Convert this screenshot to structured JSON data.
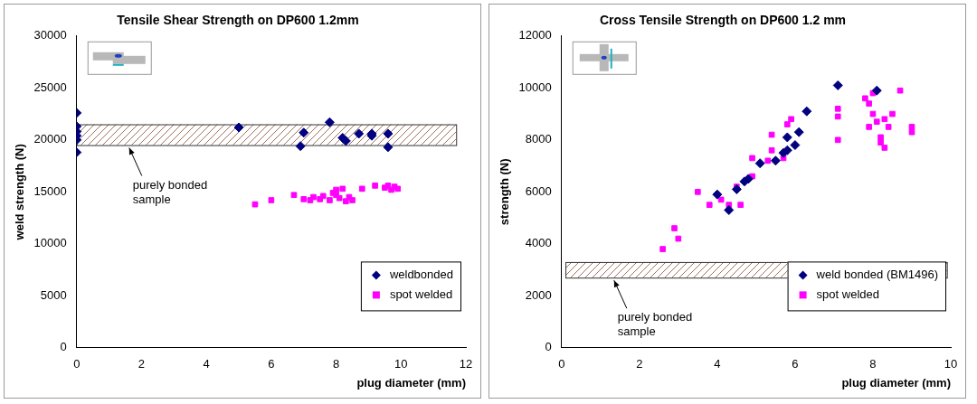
{
  "chart_data": [
    {
      "type": "scatter",
      "title": "Tensile Shear Strength on DP600 1.2mm",
      "x_label": "plug diameter (mm)",
      "y_label": "weld strength (N)",
      "xlim": [
        0,
        12
      ],
      "xticks": [
        0,
        2,
        4,
        6,
        8,
        10,
        12
      ],
      "ylim": [
        0,
        30000
      ],
      "yticks": [
        0,
        5000,
        10000,
        15000,
        20000,
        25000,
        30000
      ],
      "grid": false,
      "legend": "lower right",
      "series": [
        {
          "name": "weldbonded",
          "color": "#000080",
          "marker": "diamond",
          "x": [
            0,
            0,
            0,
            0,
            0,
            0,
            5.0,
            6.9,
            7.0,
            7.8,
            8.2,
            8.3,
            8.7,
            9.1,
            9.1,
            9.6,
            9.6
          ],
          "values": [
            22600,
            21300,
            20800,
            20400,
            20000,
            18800,
            21200,
            19400,
            20700,
            21700,
            20200,
            19900,
            20600,
            20400,
            20600,
            19300,
            20600
          ]
        },
        {
          "name": "spot welded",
          "color": "#ff00ff",
          "marker": "square",
          "x": [
            5.5,
            6.0,
            6.7,
            7.0,
            7.2,
            7.3,
            7.5,
            7.6,
            7.8,
            7.9,
            8.0,
            8.0,
            8.1,
            8.2,
            8.3,
            8.4,
            8.5,
            8.8,
            9.2,
            9.5,
            9.6,
            9.7,
            9.8,
            9.9
          ],
          "values": [
            13800,
            14200,
            14700,
            14300,
            14200,
            14500,
            14300,
            14600,
            14200,
            14900,
            15200,
            14700,
            14400,
            15300,
            14100,
            14500,
            14200,
            15300,
            15600,
            15400,
            15600,
            15200,
            15500,
            15300
          ]
        }
      ],
      "band": {
        "label": "purely bonded sample",
        "x": [
          0,
          11.7
        ],
        "y": [
          19500,
          21500
        ]
      }
    },
    {
      "type": "scatter",
      "title": "Cross Tensile Strength on DP600 1.2 mm",
      "x_label": "plug diameter (mm)",
      "y_label": "strength (N)",
      "xlim": [
        0,
        10
      ],
      "xticks": [
        0,
        2,
        4,
        6,
        8,
        10
      ],
      "ylim": [
        0,
        12000
      ],
      "yticks": [
        0,
        2000,
        4000,
        6000,
        8000,
        10000,
        12000
      ],
      "grid": false,
      "legend": "lower right",
      "series": [
        {
          "name": "weld bonded (BM1496)",
          "color": "#000080",
          "marker": "diamond",
          "x": [
            4.0,
            4.3,
            4.5,
            4.7,
            4.8,
            5.1,
            5.5,
            5.7,
            5.8,
            5.8,
            6.0,
            6.1,
            6.3,
            7.1,
            8.1
          ],
          "values": [
            5900,
            5300,
            6100,
            6400,
            6500,
            7100,
            7200,
            7500,
            7600,
            8100,
            7800,
            8300,
            9100,
            10100,
            9900
          ]
        },
        {
          "name": "spot welded",
          "color": "#ff00ff",
          "marker": "square",
          "x": [
            2.6,
            2.9,
            3.0,
            3.5,
            3.8,
            4.1,
            4.3,
            4.6,
            4.5,
            4.9,
            4.9,
            5.3,
            5.4,
            5.4,
            5.7,
            5.8,
            5.9,
            7.1,
            7.1,
            7.1,
            7.8,
            7.9,
            7.9,
            8.0,
            8.0,
            8.1,
            8.2,
            8.2,
            8.3,
            8.3,
            8.5,
            8.7,
            9.0,
            9.0,
            8.4
          ],
          "values": [
            3800,
            4600,
            4200,
            6000,
            5500,
            5700,
            5500,
            5500,
            6200,
            6600,
            7300,
            7200,
            8200,
            7600,
            7300,
            8600,
            8800,
            9200,
            8900,
            8000,
            9600,
            8500,
            9400,
            9800,
            9000,
            8700,
            8100,
            7900,
            7700,
            8800,
            9000,
            9900,
            8500,
            8300,
            8500
          ]
        }
      ],
      "band": {
        "label": "purely bonded sample",
        "x": [
          0.1,
          9.9
        ],
        "y": [
          2700,
          3300
        ]
      }
    }
  ]
}
